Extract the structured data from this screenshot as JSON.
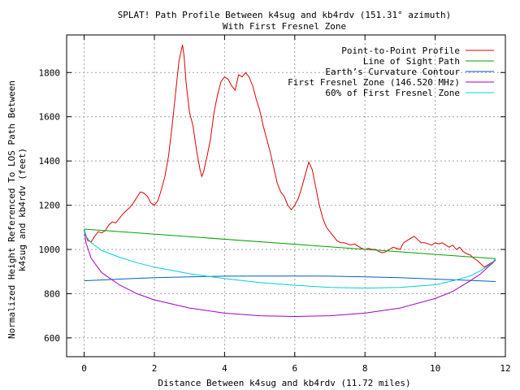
{
  "chart_data": {
    "type": "line",
    "title": "SPLAT! Path Profile Between k4sug and kb4rdv (151.31° azimuth)",
    "subtitle": "With First Fresnel Zone",
    "xlabel": "Distance Between k4sug and kb4rdv (11.72 miles)",
    "ylabel_line1": "Normalized Height Referenced To LOS Path Between",
    "ylabel_line2": "k4sug and kb4rdv (feet)",
    "xlim": [
      -0.5,
      12
    ],
    "ylim": [
      515,
      1970
    ],
    "x_ticks": [
      0,
      2,
      4,
      6,
      8,
      10,
      12
    ],
    "y_ticks": [
      600,
      800,
      1000,
      1200,
      1400,
      1600,
      1800
    ],
    "grid": true,
    "legend_position": "top-right",
    "series": [
      {
        "name": "Point-to-Point Profile",
        "color": "#dd0000",
        "points": [
          [
            0,
            1090
          ],
          [
            0.1,
            1040
          ],
          [
            0.2,
            1035
          ],
          [
            0.3,
            1060
          ],
          [
            0.4,
            1080
          ],
          [
            0.5,
            1075
          ],
          [
            0.6,
            1085
          ],
          [
            0.7,
            1110
          ],
          [
            0.8,
            1125
          ],
          [
            0.9,
            1120
          ],
          [
            1.0,
            1140
          ],
          [
            1.1,
            1160
          ],
          [
            1.2,
            1175
          ],
          [
            1.3,
            1190
          ],
          [
            1.4,
            1210
          ],
          [
            1.5,
            1235
          ],
          [
            1.6,
            1260
          ],
          [
            1.7,
            1255
          ],
          [
            1.8,
            1240
          ],
          [
            1.9,
            1210
          ],
          [
            2.0,
            1200
          ],
          [
            2.1,
            1220
          ],
          [
            2.2,
            1270
          ],
          [
            2.3,
            1330
          ],
          [
            2.4,
            1420
          ],
          [
            2.5,
            1550
          ],
          [
            2.6,
            1700
          ],
          [
            2.7,
            1850
          ],
          [
            2.8,
            1925
          ],
          [
            2.85,
            1870
          ],
          [
            2.9,
            1760
          ],
          [
            3.0,
            1620
          ],
          [
            3.1,
            1560
          ],
          [
            3.2,
            1450
          ],
          [
            3.3,
            1360
          ],
          [
            3.35,
            1330
          ],
          [
            3.4,
            1350
          ],
          [
            3.5,
            1420
          ],
          [
            3.6,
            1500
          ],
          [
            3.7,
            1620
          ],
          [
            3.8,
            1700
          ],
          [
            3.9,
            1760
          ],
          [
            4.0,
            1780
          ],
          [
            4.1,
            1770
          ],
          [
            4.2,
            1740
          ],
          [
            4.3,
            1720
          ],
          [
            4.4,
            1790
          ],
          [
            4.5,
            1780
          ],
          [
            4.6,
            1800
          ],
          [
            4.7,
            1780
          ],
          [
            4.8,
            1740
          ],
          [
            4.9,
            1680
          ],
          [
            5.0,
            1630
          ],
          [
            5.1,
            1560
          ],
          [
            5.2,
            1500
          ],
          [
            5.3,
            1440
          ],
          [
            5.4,
            1370
          ],
          [
            5.5,
            1300
          ],
          [
            5.6,
            1260
          ],
          [
            5.7,
            1240
          ],
          [
            5.8,
            1200
          ],
          [
            5.9,
            1180
          ],
          [
            6.0,
            1200
          ],
          [
            6.1,
            1230
          ],
          [
            6.2,
            1280
          ],
          [
            6.3,
            1340
          ],
          [
            6.4,
            1395
          ],
          [
            6.5,
            1360
          ],
          [
            6.6,
            1280
          ],
          [
            6.7,
            1200
          ],
          [
            6.8,
            1140
          ],
          [
            6.9,
            1100
          ],
          [
            7.0,
            1080
          ],
          [
            7.1,
            1060
          ],
          [
            7.2,
            1040
          ],
          [
            7.3,
            1030
          ],
          [
            7.4,
            1030
          ],
          [
            7.5,
            1025
          ],
          [
            7.6,
            1020
          ],
          [
            7.7,
            1025
          ],
          [
            7.8,
            1015
          ],
          [
            7.9,
            1005
          ],
          [
            8.0,
            1000
          ],
          [
            8.1,
            1005
          ],
          [
            8.2,
            1000
          ],
          [
            8.3,
            1000
          ],
          [
            8.4,
            990
          ],
          [
            8.5,
            985
          ],
          [
            8.6,
            990
          ],
          [
            8.7,
            1000
          ],
          [
            8.8,
            1010
          ],
          [
            8.9,
            1005
          ],
          [
            9.0,
            1000
          ],
          [
            9.1,
            1030
          ],
          [
            9.2,
            1040
          ],
          [
            9.3,
            1050
          ],
          [
            9.4,
            1060
          ],
          [
            9.5,
            1045
          ],
          [
            9.6,
            1030
          ],
          [
            9.7,
            1030
          ],
          [
            9.8,
            1025
          ],
          [
            9.9,
            1020
          ],
          [
            10.0,
            1030
          ],
          [
            10.1,
            1025
          ],
          [
            10.2,
            1030
          ],
          [
            10.3,
            1020
          ],
          [
            10.4,
            1010
          ],
          [
            10.5,
            1020
          ],
          [
            10.6,
            1000
          ],
          [
            10.7,
            1010
          ],
          [
            10.8,
            990
          ],
          [
            10.9,
            980
          ],
          [
            11.0,
            975
          ],
          [
            11.1,
            960
          ],
          [
            11.2,
            950
          ],
          [
            11.3,
            935
          ],
          [
            11.4,
            920
          ],
          [
            11.5,
            930
          ],
          [
            11.6,
            940
          ],
          [
            11.72,
            950
          ]
        ]
      },
      {
        "name": "Line of Sight Path",
        "color": "#00a000",
        "points": [
          [
            0,
            1092
          ],
          [
            11.72,
            958
          ]
        ]
      },
      {
        "name": "Earth’s Curvature Contour",
        "color": "#0060c0",
        "points": [
          [
            0,
            858
          ],
          [
            1,
            866
          ],
          [
            2,
            872
          ],
          [
            3,
            876
          ],
          [
            4,
            879
          ],
          [
            5,
            880
          ],
          [
            6,
            880
          ],
          [
            7,
            879
          ],
          [
            8,
            876
          ],
          [
            9,
            872
          ],
          [
            10,
            866
          ],
          [
            11,
            860
          ],
          [
            11.72,
            855
          ]
        ]
      },
      {
        "name": "First Fresnel Zone (146.520 MHz)",
        "color": "#a000c0",
        "points": [
          [
            0,
            1092
          ],
          [
            0.05,
            1030
          ],
          [
            0.2,
            960
          ],
          [
            0.5,
            895
          ],
          [
            1,
            840
          ],
          [
            1.5,
            800
          ],
          [
            2,
            772
          ],
          [
            3,
            735
          ],
          [
            4,
            712
          ],
          [
            5,
            700
          ],
          [
            6,
            697
          ],
          [
            7,
            700
          ],
          [
            8,
            712
          ],
          [
            9,
            735
          ],
          [
            10,
            778
          ],
          [
            10.5,
            810
          ],
          [
            11,
            858
          ],
          [
            11.3,
            890
          ],
          [
            11.5,
            920
          ],
          [
            11.65,
            940
          ],
          [
            11.72,
            958
          ]
        ]
      },
      {
        "name": "60% of First Fresnel Zone",
        "color": "#00d0d0",
        "points": [
          [
            0,
            1092
          ],
          [
            0.05,
            1060
          ],
          [
            0.2,
            1030
          ],
          [
            0.5,
            995
          ],
          [
            1,
            965
          ],
          [
            1.5,
            940
          ],
          [
            2,
            920
          ],
          [
            3,
            890
          ],
          [
            4,
            868
          ],
          [
            5,
            850
          ],
          [
            6,
            838
          ],
          [
            7,
            828
          ],
          [
            8,
            825
          ],
          [
            9,
            828
          ],
          [
            10,
            840
          ],
          [
            10.5,
            858
          ],
          [
            11,
            880
          ],
          [
            11.3,
            905
          ],
          [
            11.5,
            925
          ],
          [
            11.65,
            945
          ],
          [
            11.72,
            958
          ]
        ]
      }
    ]
  }
}
